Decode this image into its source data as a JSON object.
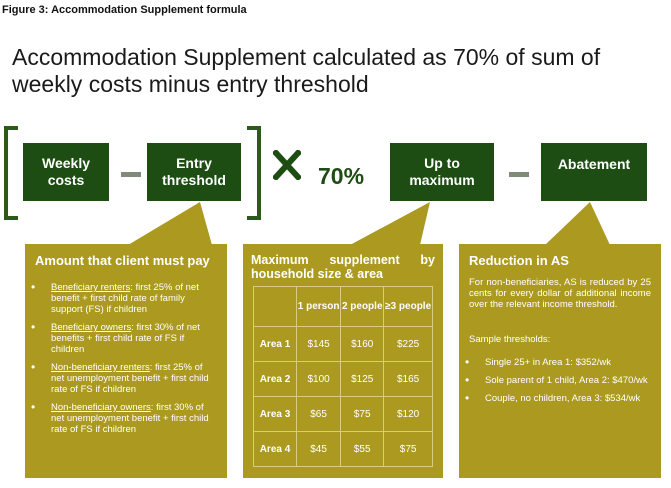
{
  "figure_caption": "Figure  3: Accommodation Supplement formula",
  "headline": "Accommodation Supplement calculated as 70% of sum of weekly costs minus entry threshold",
  "formula": {
    "weekly_costs": "Weekly costs",
    "entry_threshold": "Entry threshold",
    "multiplier": "70%",
    "up_to_maximum": "Up to maximum",
    "abatement": "Abatement"
  },
  "colors": {
    "dark_green": "#1e4d14",
    "olive": "#ab9a1f",
    "minus_grey": "#7f8a78"
  },
  "panel_pay": {
    "title": "Amount that client must pay",
    "items": [
      {
        "label": "Beneficiary renters",
        "text": ": first 25% of net benefit + first child rate of family support (FS) if children"
      },
      {
        "label": "Beneficiary owners",
        "text": ": first 30% of net benefits + first child rate of FS if children"
      },
      {
        "label": "Non-beneficiary renters",
        "text": ": first 25% of net unemployment benefit + first child rate of FS if children"
      },
      {
        "label": "Non-beneficiary owners",
        "text": ": first 30% of net unemployment benefit + first child rate of FS if children"
      }
    ]
  },
  "panel_max": {
    "title": "Maximum supplement by household size & area",
    "columns": [
      "1 person",
      "2 people",
      "≥3 people"
    ],
    "rows": [
      {
        "area": "Area 1",
        "values": [
          "$145",
          "$160",
          "$225"
        ]
      },
      {
        "area": "Area 2",
        "values": [
          "$100",
          "$125",
          "$165"
        ]
      },
      {
        "area": "Area 3",
        "values": [
          "$65",
          "$75",
          "$120"
        ]
      },
      {
        "area": "Area 4",
        "values": [
          "$45",
          "$55",
          "$75"
        ]
      }
    ]
  },
  "panel_reduction": {
    "title": "Reduction in AS",
    "description": "For non-beneficiaries, AS is reduced by 25 cents for every dollar of additional income over the relevant income threshold.",
    "sample_heading": "Sample thresholds:",
    "samples": [
      "Single 25+ in Area 1: $352/wk",
      "Sole parent of 1 child, Area 2: $470/wk",
      "Couple, no children, Area 3: $534/wk"
    ]
  }
}
